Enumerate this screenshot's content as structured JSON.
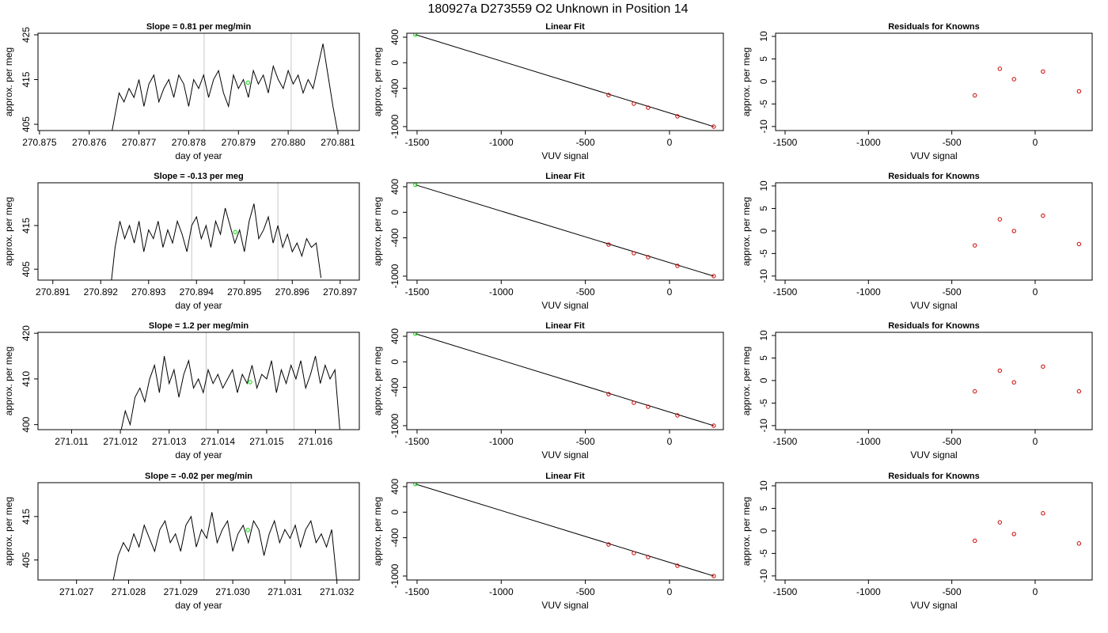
{
  "title": "180927a     D273559   O2 Unknown in Position  14",
  "chart_data": [
    {
      "type": "line",
      "title": "Slope =  0.81  per meg/min",
      "xlabel": "day of year",
      "ylabel": "approx. per meg",
      "x": [
        270.8764,
        270.8765,
        270.8766,
        270.8767,
        270.8768,
        270.8769,
        270.877,
        270.8771,
        270.8772,
        270.8773,
        270.8774,
        270.8775,
        270.8776,
        270.8777,
        270.8778,
        270.8779,
        270.878,
        270.8781,
        270.8782,
        270.8783,
        270.8784,
        270.8785,
        270.8786,
        270.8787,
        270.8788,
        270.8789,
        270.879,
        270.8791,
        270.8792,
        270.8793,
        270.8794,
        270.8795,
        270.8796,
        270.8797,
        270.8798,
        270.8799,
        270.88,
        270.8801,
        270.8802,
        270.8803,
        270.8804,
        270.8805,
        270.8806,
        270.8807,
        270.8808,
        270.8809,
        270.881
      ],
      "series": [
        {
          "color": "#000000",
          "values": [
            400,
            406,
            412,
            410,
            413,
            411,
            415,
            409,
            414,
            416,
            410,
            413,
            415,
            411,
            416,
            414,
            409,
            415,
            413,
            416,
            411,
            415,
            417,
            412,
            409,
            416,
            413,
            415,
            411,
            417,
            414,
            416,
            412,
            418,
            415,
            413,
            417,
            414,
            416,
            412,
            415,
            413,
            418,
            423,
            416,
            409,
            403
          ]
        }
      ],
      "vlines": [
        270.87831,
        270.88006
      ],
      "vline_color": "#c8c8c8",
      "marker": {
        "x": 270.87919,
        "y": 414.3,
        "color": "#00dd00"
      },
      "xlim": [
        270.87497,
        270.88143
      ],
      "ylim": [
        403.6,
        425.35
      ],
      "xticks": [
        270.875,
        270.876,
        270.877,
        270.878,
        270.879,
        {
          "value": 270.88,
          "label": "270.880"
        },
        270.881
      ],
      "yticks": [
        405,
        415,
        425
      ]
    },
    {
      "type": "scatter",
      "title": "Linear Fit",
      "xlabel": "VUV signal",
      "ylabel": "approx. per meg",
      "series": [
        {
          "color": "#cc0000",
          "x": [
            -362,
            -212,
            -127,
            47,
            263
          ],
          "values": [
            -505,
            -641,
            -703,
            -839,
            -1000
          ]
        },
        {
          "color": "#00dd00",
          "x": [
            -1510
          ],
          "values": [
            440
          ]
        }
      ],
      "fit": {
        "color": "#000000",
        "x": [
          -1510,
          263
        ],
        "values": [
          440,
          -1000
        ]
      },
      "xlim": [
        -1561,
        320
      ],
      "ylim": [
        -1062,
        462
      ],
      "xticks": [
        -1500,
        -1000,
        -500,
        0
      ],
      "yticks": [
        -1000,
        -400,
        0,
        400
      ]
    },
    {
      "type": "scatter",
      "title": "Residuals for Knowns",
      "xlabel": "VUV signal",
      "ylabel": "approx. per meg",
      "series": [
        {
          "color": "#cc0000",
          "x": [
            -362,
            -212,
            -127,
            47,
            263
          ],
          "values": [
            -3.1,
            2.8,
            0.5,
            2.2,
            -2.2
          ]
        }
      ],
      "xlim": [
        -1557,
        342
      ],
      "ylim": [
        -10.9,
        10.7
      ],
      "xticks": [
        -1500,
        -1000,
        -500,
        0
      ],
      "yticks": [
        -10,
        -5,
        0,
        5,
        10
      ]
    },
    {
      "type": "line",
      "title": "Slope =  -0.13  per meg",
      "xlabel": "day of year",
      "ylabel": "approx. per meg",
      "x": [
        270.8922,
        270.8923,
        270.8924,
        270.8925,
        270.8926,
        270.8927,
        270.8928,
        270.8929,
        270.893,
        270.8931,
        270.8932,
        270.8933,
        270.8934,
        270.8935,
        270.8936,
        270.8937,
        270.8938,
        270.8939,
        270.894,
        270.8941,
        270.8942,
        270.8943,
        270.8944,
        270.8945,
        270.8946,
        270.8947,
        270.8948,
        270.8949,
        270.895,
        270.8951,
        270.8952,
        270.8953,
        270.8954,
        270.8955,
        270.8956,
        270.8957,
        270.8958,
        270.8959,
        270.896,
        270.8961,
        270.8962,
        270.8963,
        270.8964,
        270.8965,
        270.8966
      ],
      "series": [
        {
          "color": "#000000",
          "values": [
            400,
            410,
            416,
            412,
            415,
            411,
            416,
            409,
            414,
            412,
            416,
            410,
            414,
            411,
            416,
            413,
            409,
            415,
            417,
            412,
            415,
            410,
            416,
            413,
            419,
            415,
            411,
            414,
            409,
            416,
            420,
            412,
            414,
            417,
            411,
            415,
            410,
            413,
            409,
            411,
            408,
            412,
            410,
            411,
            403
          ]
        }
      ],
      "vlines": [
        270.8939,
        270.8957
      ],
      "vline_color": "#c8c8c8",
      "marker": {
        "x": 270.89481,
        "y": 413.5,
        "color": "#00dd00"
      },
      "xlim": [
        270.89069,
        270.8974
      ],
      "ylim": [
        402.5,
        424.8
      ],
      "xticks": [
        270.891,
        270.892,
        270.893,
        270.894,
        270.895,
        270.896,
        270.897
      ],
      "yticks": [
        405,
        415
      ]
    },
    {
      "type": "scatter",
      "title": "Linear Fit",
      "xlabel": "VUV signal",
      "ylabel": "approx. per meg",
      "series": [
        {
          "color": "#cc0000",
          "x": [
            -362,
            -212,
            -127,
            47,
            263
          ],
          "values": [
            -505,
            -641,
            -703,
            -839,
            -1000
          ]
        },
        {
          "color": "#00dd00",
          "x": [
            -1510
          ],
          "values": [
            430
          ]
        }
      ],
      "fit": {
        "color": "#000000",
        "x": [
          -1510,
          263
        ],
        "values": [
          430,
          -1000
        ]
      },
      "xlim": [
        -1561,
        320
      ],
      "ylim": [
        -1062,
        462
      ],
      "xticks": [
        -1500,
        -1000,
        -500,
        0
      ],
      "yticks": [
        -1000,
        -400,
        0,
        400
      ]
    },
    {
      "type": "scatter",
      "title": "Residuals for Knowns",
      "xlabel": "VUV signal",
      "ylabel": "approx. per meg",
      "series": [
        {
          "color": "#cc0000",
          "x": [
            -362,
            -212,
            -127,
            47,
            263
          ],
          "values": [
            -3.2,
            2.6,
            0,
            3.4,
            -2.9
          ]
        }
      ],
      "xlim": [
        -1557,
        342
      ],
      "ylim": [
        -10.9,
        10.7
      ],
      "xticks": [
        -1500,
        -1000,
        -500,
        0
      ],
      "yticks": [
        -10,
        -5,
        0,
        5,
        10
      ]
    },
    {
      "type": "line",
      "title": "Slope =  1.2  per meg/min",
      "xlabel": "day of year",
      "ylabel": "approx. per meg",
      "x": [
        271.012,
        271.0121,
        271.0122,
        271.0123,
        271.0124,
        271.0125,
        271.0126,
        271.0127,
        271.0128,
        271.0129,
        271.013,
        271.0131,
        271.0132,
        271.0133,
        271.0134,
        271.0135,
        271.0136,
        271.0137,
        271.0138,
        271.0139,
        271.014,
        271.0141,
        271.0142,
        271.0143,
        271.0144,
        271.0145,
        271.0146,
        271.0147,
        271.0148,
        271.0149,
        271.015,
        271.0151,
        271.0152,
        271.0153,
        271.0154,
        271.0155,
        271.0156,
        271.0157,
        271.0158,
        271.0159,
        271.016,
        271.0161,
        271.0162,
        271.0163,
        271.0164,
        271.0165
      ],
      "series": [
        {
          "color": "#000000",
          "values": [
            398,
            403,
            400,
            406,
            408,
            405,
            410,
            413,
            407,
            415,
            409,
            412,
            406,
            411,
            414,
            408,
            410,
            407,
            412,
            409,
            411,
            408,
            410,
            412,
            407,
            411,
            409,
            413,
            408,
            411,
            410,
            414,
            407,
            412,
            409,
            413,
            410,
            414,
            408,
            411,
            415,
            409,
            413,
            410,
            412,
            399
          ]
        }
      ],
      "vlines": [
        271.01376,
        271.01556
      ],
      "vline_color": "#c8c8c8",
      "marker": {
        "x": 271.01466,
        "y": 409.3,
        "color": "#00dd00"
      },
      "xlim": [
        271.01031,
        271.0169
      ],
      "ylim": [
        398.9,
        420.2
      ],
      "xticks": [
        271.011,
        271.012,
        271.013,
        271.014,
        271.015,
        271.016
      ],
      "yticks": [
        400,
        410,
        420
      ]
    },
    {
      "type": "scatter",
      "title": "Linear Fit",
      "xlabel": "VUV signal",
      "ylabel": "approx. per meg",
      "series": [
        {
          "color": "#cc0000",
          "x": [
            -362,
            -212,
            -127,
            47,
            263
          ],
          "values": [
            -505,
            -641,
            -703,
            -839,
            -1000
          ]
        },
        {
          "color": "#00dd00",
          "x": [
            -1510
          ],
          "values": [
            440
          ]
        }
      ],
      "fit": {
        "color": "#000000",
        "x": [
          -1510,
          263
        ],
        "values": [
          440,
          -1000
        ]
      },
      "xlim": [
        -1561,
        320
      ],
      "ylim": [
        -1062,
        462
      ],
      "xticks": [
        -1500,
        -1000,
        -500,
        0
      ],
      "yticks": [
        -1000,
        -400,
        0,
        400
      ]
    },
    {
      "type": "scatter",
      "title": "Residuals for Knowns",
      "xlabel": "VUV signal",
      "ylabel": "approx. per meg",
      "series": [
        {
          "color": "#cc0000",
          "x": [
            -362,
            -212,
            -127,
            47,
            263
          ],
          "values": [
            -2.4,
            2.2,
            -0.4,
            3.1,
            -2.4
          ]
        }
      ],
      "xlim": [
        -1557,
        342
      ],
      "ylim": [
        -10.9,
        10.7
      ],
      "xticks": [
        -1500,
        -1000,
        -500,
        0
      ],
      "yticks": [
        -10,
        -5,
        0,
        5,
        10
      ]
    },
    {
      "type": "line",
      "title": "Slope =  -0.02  per meg/min",
      "xlabel": "day of year",
      "ylabel": "approx. per meg",
      "x": [
        271.0277,
        271.0278,
        271.0279,
        271.028,
        271.0281,
        271.0282,
        271.0283,
        271.0284,
        271.0285,
        271.0286,
        271.0287,
        271.0288,
        271.0289,
        271.029,
        271.0291,
        271.0292,
        271.0293,
        271.0294,
        271.0295,
        271.0296,
        271.0297,
        271.0298,
        271.0299,
        271.03,
        271.0301,
        271.0302,
        271.0303,
        271.0304,
        271.0305,
        271.0306,
        271.0307,
        271.0308,
        271.0309,
        271.031,
        271.0311,
        271.0312,
        271.0313,
        271.0314,
        271.0315,
        271.0316,
        271.0317,
        271.0318,
        271.0319,
        271.032
      ],
      "series": [
        {
          "color": "#000000",
          "values": [
            400,
            406,
            409,
            407,
            411,
            408,
            413,
            410,
            407,
            412,
            414,
            409,
            411,
            407,
            413,
            415,
            408,
            412,
            410,
            416,
            409,
            412,
            414,
            407,
            411,
            413,
            409,
            414,
            412,
            406,
            411,
            414,
            409,
            412,
            410,
            413,
            408,
            412,
            414,
            409,
            411,
            408,
            412,
            400
          ]
        }
      ],
      "vlines": [
        271.02945,
        271.03112
      ],
      "vline_color": "#c8c8c8",
      "marker": {
        "x": 271.03029,
        "y": 411.9,
        "color": "#00dd00"
      },
      "xlim": [
        271.02626,
        271.03243
      ],
      "ylim": [
        400.4,
        422.8
      ],
      "xticks": [
        271.027,
        271.028,
        271.029,
        {
          "value": 271.03,
          "label": "271.030"
        },
        271.031,
        271.032
      ],
      "yticks": [
        405,
        415
      ]
    },
    {
      "type": "scatter",
      "title": "Linear Fit",
      "xlabel": "VUV signal",
      "ylabel": "approx. per meg",
      "series": [
        {
          "color": "#cc0000",
          "x": [
            -362,
            -212,
            -127,
            47,
            263
          ],
          "values": [
            -505,
            -641,
            -703,
            -839,
            -1000
          ]
        },
        {
          "color": "#00dd00",
          "x": [
            -1510
          ],
          "values": [
            440
          ]
        }
      ],
      "fit": {
        "color": "#000000",
        "x": [
          -1510,
          263
        ],
        "values": [
          440,
          -1000
        ]
      },
      "xlim": [
        -1561,
        320
      ],
      "ylim": [
        -1062,
        462
      ],
      "xticks": [
        -1500,
        -1000,
        -500,
        0
      ],
      "yticks": [
        -1000,
        -400,
        0,
        400
      ]
    },
    {
      "type": "scatter",
      "title": "Residuals for Knowns",
      "xlabel": "VUV signal",
      "ylabel": "approx. per meg",
      "series": [
        {
          "color": "#cc0000",
          "x": [
            -362,
            -212,
            -127,
            47,
            263
          ],
          "values": [
            -2.2,
            1.9,
            -0.7,
            3.9,
            -2.8
          ]
        }
      ],
      "xlim": [
        -1557,
        342
      ],
      "ylim": [
        -10.9,
        10.7
      ],
      "xticks": [
        -1500,
        -1000,
        -500,
        0
      ],
      "yticks": [
        -10,
        -5,
        0,
        5,
        10
      ]
    }
  ]
}
